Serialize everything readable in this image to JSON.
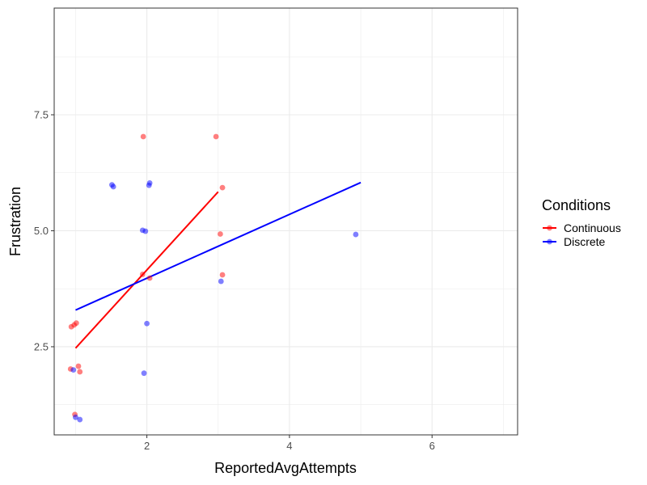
{
  "chart_data": {
    "type": "scatter",
    "title": "",
    "xlabel": "ReportedAvgAttempts",
    "ylabel": "Frustration",
    "xlim": [
      0.7,
      7.2
    ],
    "ylim": [
      0.6,
      9.8
    ],
    "x_ticks": [
      2,
      4,
      6
    ],
    "y_ticks": [
      2.5,
      5.0,
      7.5
    ],
    "x_tick_labels": [
      "2",
      "4",
      "6"
    ],
    "y_tick_labels": [
      "2.5",
      "5.0",
      "7.5"
    ],
    "grid": true,
    "legend": {
      "title": "Conditions",
      "position": "right"
    },
    "series": [
      {
        "name": "Continuous",
        "color": "#ff0000",
        "points": [
          {
            "x": 0.93,
            "y": 2.02
          },
          {
            "x": 1.04,
            "y": 2.08
          },
          {
            "x": 1.06,
            "y": 1.96
          },
          {
            "x": 0.99,
            "y": 1.04
          },
          {
            "x": 0.94,
            "y": 2.93
          },
          {
            "x": 0.98,
            "y": 2.97
          },
          {
            "x": 1.01,
            "y": 3.01
          },
          {
            "x": 1.95,
            "y": 7.03
          },
          {
            "x": 2.97,
            "y": 7.03
          },
          {
            "x": 3.06,
            "y": 5.93
          },
          {
            "x": 3.03,
            "y": 4.93
          },
          {
            "x": 3.06,
            "y": 4.05
          },
          {
            "x": 1.94,
            "y": 4.06
          },
          {
            "x": 2.04,
            "y": 3.98
          }
        ],
        "trend": {
          "x": [
            1.0,
            3.0
          ],
          "y": [
            2.47,
            5.84
          ]
        }
      },
      {
        "name": "Discrete",
        "color": "#0000ff",
        "points": [
          {
            "x": 0.97,
            "y": 2.0
          },
          {
            "x": 1.0,
            "y": 0.98
          },
          {
            "x": 1.06,
            "y": 0.93
          },
          {
            "x": 1.51,
            "y": 5.99
          },
          {
            "x": 1.53,
            "y": 5.95
          },
          {
            "x": 2.03,
            "y": 5.98
          },
          {
            "x": 2.04,
            "y": 6.03
          },
          {
            "x": 1.94,
            "y": 5.01
          },
          {
            "x": 1.98,
            "y": 4.99
          },
          {
            "x": 2.0,
            "y": 3.0
          },
          {
            "x": 1.96,
            "y": 1.93
          },
          {
            "x": 3.04,
            "y": 3.91
          },
          {
            "x": 4.93,
            "y": 4.92
          }
        ],
        "trend": {
          "x": [
            1.0,
            5.0
          ],
          "y": [
            3.29,
            6.04
          ]
        }
      }
    ]
  }
}
